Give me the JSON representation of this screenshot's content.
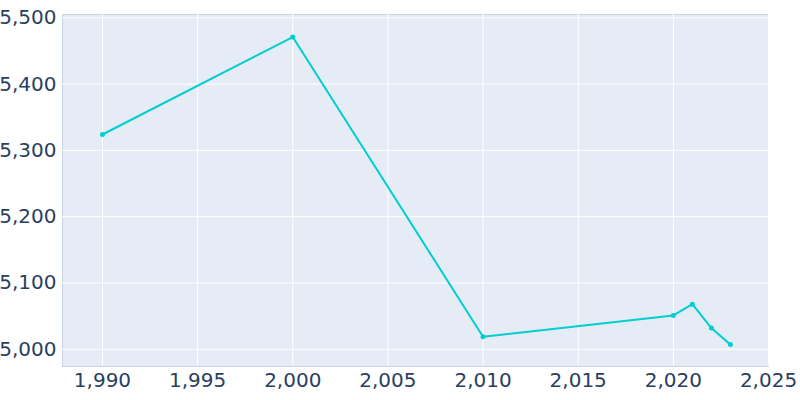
{
  "chart_data": {
    "type": "line",
    "x": [
      1990,
      2000,
      2010,
      2020,
      2021,
      2022,
      2023
    ],
    "values": [
      5324,
      5471,
      5019,
      5051,
      5068,
      5032,
      5007
    ],
    "color": "#00ced1",
    "marker": "circle",
    "xlim": [
      1987.9,
      2025
    ],
    "xticks": [
      1990,
      1995,
      2000,
      2005,
      2010,
      2015,
      2020,
      2025
    ],
    "ylim": [
      4974,
      5505
    ],
    "yticks": [
      5000,
      5100,
      5200,
      5300,
      5400,
      5500
    ],
    "grid": true
  }
}
